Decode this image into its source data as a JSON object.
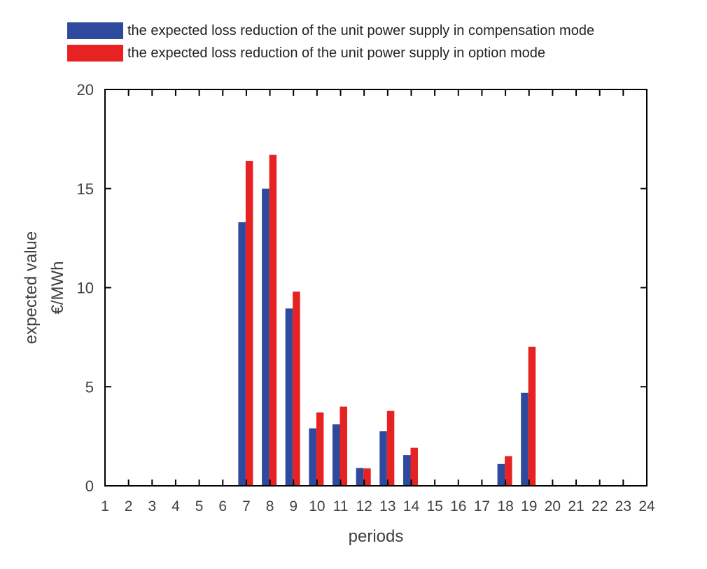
{
  "chart_data": {
    "type": "bar",
    "title": "",
    "xlabel": "periods",
    "ylabel_lines": [
      "expected value",
      "€/MWh"
    ],
    "categories": [
      "1",
      "2",
      "3",
      "4",
      "5",
      "6",
      "7",
      "8",
      "9",
      "10",
      "11",
      "12",
      "13",
      "14",
      "15",
      "16",
      "17",
      "18",
      "19",
      "20",
      "21",
      "22",
      "23",
      "24"
    ],
    "ylim": [
      0,
      20
    ],
    "yticks": [
      0,
      5,
      10,
      15,
      20
    ],
    "grid": false,
    "legend_position": "top-left",
    "series": [
      {
        "name": "the expected loss reduction of the unit power supply in compensation mode",
        "color": "#2E4A9E",
        "values": [
          0,
          0,
          0,
          0,
          0,
          0,
          13.3,
          15.0,
          8.95,
          2.9,
          3.1,
          0.9,
          2.75,
          1.55,
          0,
          0,
          0,
          1.1,
          4.7,
          0,
          0,
          0,
          0,
          0
        ]
      },
      {
        "name": "the expected loss reduction of the unit power supply in option mode",
        "color": "#E62222",
        "values": [
          0,
          0,
          0,
          0,
          0,
          0,
          16.4,
          16.7,
          9.8,
          3.7,
          4.0,
          0.88,
          3.78,
          1.92,
          0,
          0,
          0,
          1.5,
          7.02,
          0,
          0,
          0,
          0,
          0
        ]
      }
    ]
  }
}
